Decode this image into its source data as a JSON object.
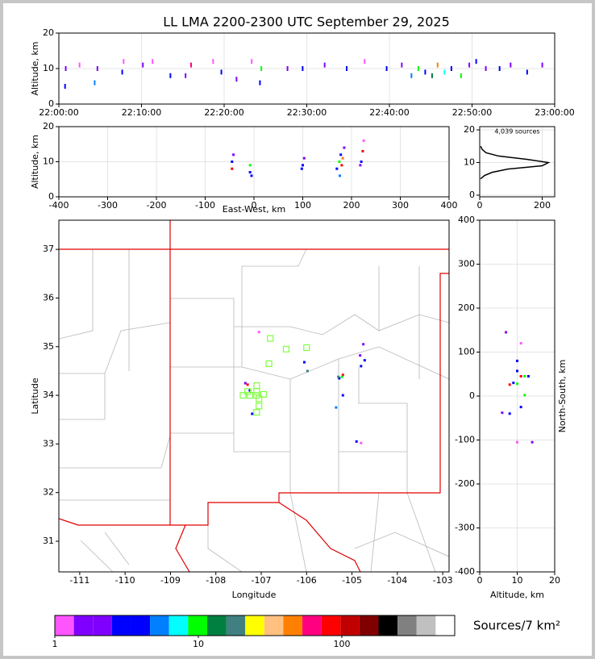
{
  "chart_data": [
    {
      "type": "scatter",
      "title": "LL LMA 2200-2300 UTC September 29, 2025",
      "y_label": "Altitude, km",
      "x": [
        "22:00:45",
        "22:00:50",
        "22:02:30",
        "22:04:20",
        "22:04:40",
        "22:07:40",
        "22:07:50",
        "22:10:10",
        "22:11:20",
        "22:13:30",
        "22:15:20",
        "22:16:00",
        "22:18:40",
        "22:19:40",
        "22:21:30",
        "22:23:20",
        "22:24:20",
        "22:24:30",
        "22:27:40",
        "22:29:30",
        "22:32:10",
        "22:34:50",
        "22:37:00",
        "22:39:40",
        "22:41:30",
        "22:42:40",
        "22:43:30",
        "22:44:20",
        "22:45:10",
        "22:45:50",
        "22:46:40",
        "22:47:30",
        "22:48:40",
        "22:49:40",
        "22:50:30",
        "22:51:40",
        "22:53:20",
        "22:54:40",
        "22:56:40",
        "22:58:30"
      ],
      "y": [
        5,
        10,
        11,
        6,
        10,
        9,
        12,
        11,
        12,
        8,
        8,
        11,
        12,
        9,
        7,
        12,
        6,
        10,
        10,
        10,
        11,
        10,
        12,
        10,
        11,
        8,
        10,
        9,
        8,
        11,
        9,
        10,
        8,
        11,
        12,
        10,
        10,
        11,
        9,
        11
      ],
      "colors": [
        "#0000ff",
        "#8000ff",
        "#ff55ff",
        "#0080ff",
        "#8000ff",
        "#0000ff",
        "#ff55ff",
        "#8000ff",
        "#ff55ff",
        "#0000ff",
        "#8000ff",
        "#ff0080",
        "#ff55ff",
        "#0000ff",
        "#8000ff",
        "#ff55ff",
        "#0000ff",
        "#00ff00",
        "#8000ff",
        "#0000ff",
        "#8000ff",
        "#0000ff",
        "#ff55ff",
        "#0000ff",
        "#8000ff",
        "#0080ff",
        "#00ff00",
        "#0000ff",
        "#008040",
        "#ff8000",
        "#00ffff",
        "#0000ff",
        "#00ff00",
        "#8000ff",
        "#0000ff",
        "#8000ff",
        "#0000ff",
        "#8000ff",
        "#0000ff",
        "#8000ff"
      ],
      "xlim": [
        "22:00:00",
        "23:00:00"
      ],
      "xticks": [
        "22:00:00",
        "22:10:00",
        "22:20:00",
        "22:30:00",
        "22:40:00",
        "22:50:00",
        "23:00:00"
      ],
      "ylim": [
        0,
        20
      ],
      "yticks": [
        0,
        10,
        20
      ],
      "grid": true
    },
    {
      "type": "scatter",
      "x_label": "East-West, km",
      "y_label": "Altitude, km",
      "x": [
        -45,
        -45,
        -42,
        -8,
        -8,
        -5,
        100,
        103,
        98,
        175,
        178,
        180,
        182,
        170,
        185,
        220,
        223,
        218,
        225,
        176
      ],
      "y": [
        8,
        10,
        12,
        7,
        9,
        6,
        9,
        11,
        8,
        10,
        12,
        9,
        11,
        8,
        14,
        10,
        13,
        9,
        16,
        6
      ],
      "colors": [
        "#ff0000",
        "#0000ff",
        "#8000ff",
        "#0000ff",
        "#00ff00",
        "#0000ff",
        "#0000ff",
        "#8000ff",
        "#0000ff",
        "#00ff00",
        "#0000ff",
        "#ff0000",
        "#ff8000",
        "#0000ff",
        "#8000ff",
        "#0000ff",
        "#ff0000",
        "#8000ff",
        "#ff55ff",
        "#0080ff"
      ],
      "xlim": [
        -400,
        400
      ],
      "xticks": [
        -400,
        -300,
        -200,
        -100,
        0,
        100,
        200,
        300,
        400
      ],
      "ylim": [
        0,
        20
      ],
      "yticks": [
        0,
        10,
        20
      ],
      "grid": true
    },
    {
      "type": "line",
      "annotation": "4,039 sources",
      "color": "#000000",
      "x": [
        3,
        15,
        40,
        90,
        200,
        220,
        150,
        60,
        20,
        8,
        3
      ],
      "y": [
        5,
        6,
        7,
        8,
        9,
        10,
        11,
        12,
        13,
        14,
        15
      ],
      "xlim": [
        0,
        240
      ],
      "xticks": [
        0,
        200
      ],
      "ylim": [
        -0.5,
        21
      ],
      "yticks": [
        0,
        10,
        20
      ],
      "grid": true
    },
    {
      "type": "scatter",
      "x_label": "Longitude",
      "y_label": "Latitude",
      "x": [
        -107.35,
        -107.3,
        -107.25,
        -107.2,
        -107.05,
        -106.05,
        -105.98,
        -105.2,
        -105.28,
        -105.22,
        -105.3,
        -105.2,
        -105.35,
        -104.75,
        -104.82,
        -104.72,
        -104.8,
        -104.8,
        -104.9
      ],
      "y": [
        34.25,
        34.22,
        34.1,
        33.62,
        35.3,
        34.68,
        34.5,
        34.42,
        34.35,
        34.38,
        34.38,
        34.0,
        33.75,
        35.05,
        34.82,
        34.72,
        34.6,
        33.02,
        33.05
      ],
      "colors": [
        "#8000ff",
        "#ff0000",
        "#0000ff",
        "#0000ff",
        "#ff55ff",
        "#0000ff",
        "#408080",
        "#ff0000",
        "#0000ff",
        "#00ff00",
        "#408080",
        "#0000ff",
        "#0080ff",
        "#8000ff",
        "#8000ff",
        "#0000ff",
        "#0000ff",
        "#ff55ff",
        "#0000ff"
      ],
      "stations": {
        "x": [
          -106.8,
          -106.45,
          -106.0,
          -106.83,
          -107.1,
          -107.3,
          -107.1,
          -107.4,
          -107.25,
          -107.1,
          -106.95,
          -107.05,
          -107.05,
          -107.1
        ],
        "y": [
          35.17,
          34.95,
          34.98,
          34.65,
          34.2,
          34.08,
          34.08,
          34.0,
          34.0,
          34.0,
          34.02,
          33.93,
          33.78,
          33.65
        ],
        "color": "#80ff40"
      },
      "xlim": [
        -111.46,
        -102.86
      ],
      "xticks": [
        -111,
        -110,
        -109,
        -108,
        -107,
        -106,
        -105,
        -104,
        -103
      ],
      "ylim": [
        30.37,
        37.6
      ],
      "yticks": [
        31,
        32,
        33,
        34,
        35,
        36,
        37
      ],
      "grid": false
    },
    {
      "type": "scatter",
      "x_label": "Altitude, km",
      "y_label": "North-South, km",
      "x": [
        10,
        11,
        12,
        9,
        8,
        10,
        12,
        11,
        8,
        6,
        14,
        10,
        11,
        7,
        13,
        10
      ],
      "y": [
        80,
        45,
        45,
        30,
        26,
        28,
        2,
        -25,
        -40,
        -38,
        -105,
        -105,
        120,
        145,
        45,
        57
      ],
      "colors": [
        "#0000ff",
        "#ff0000",
        "#00ff00",
        "#0000ff",
        "#ff0000",
        "#00ff00",
        "#00ff00",
        "#0000ff",
        "#0000ff",
        "#8000ff",
        "#8000ff",
        "#ff55ff",
        "#ff55ff",
        "#8000ff",
        "#0000ff",
        "#0000ff"
      ],
      "xlim": [
        0,
        20
      ],
      "xticks": [
        0,
        10,
        20
      ],
      "ylim": [
        -400,
        400
      ],
      "yticks": [
        -400,
        -300,
        -200,
        -100,
        0,
        100,
        200,
        300,
        400
      ],
      "grid": true
    },
    {
      "type": "colorbar",
      "label": "Sources/7 km²",
      "log_scale": true,
      "lim": [
        1,
        612
      ],
      "ticks": [
        1,
        10,
        100
      ],
      "colors": [
        "#ff55ff",
        "#8000ff",
        "#8000ff",
        "#0000ff",
        "#0000ff",
        "#0080ff",
        "#00ffff",
        "#00ff00",
        "#008040",
        "#408080",
        "#ffff00",
        "#ffc080",
        "#ff8000",
        "#ff0080",
        "#ff0000",
        "#c00000",
        "#800000",
        "#000000",
        "#808080",
        "#c0c0c0",
        "#ffffff"
      ]
    }
  ]
}
